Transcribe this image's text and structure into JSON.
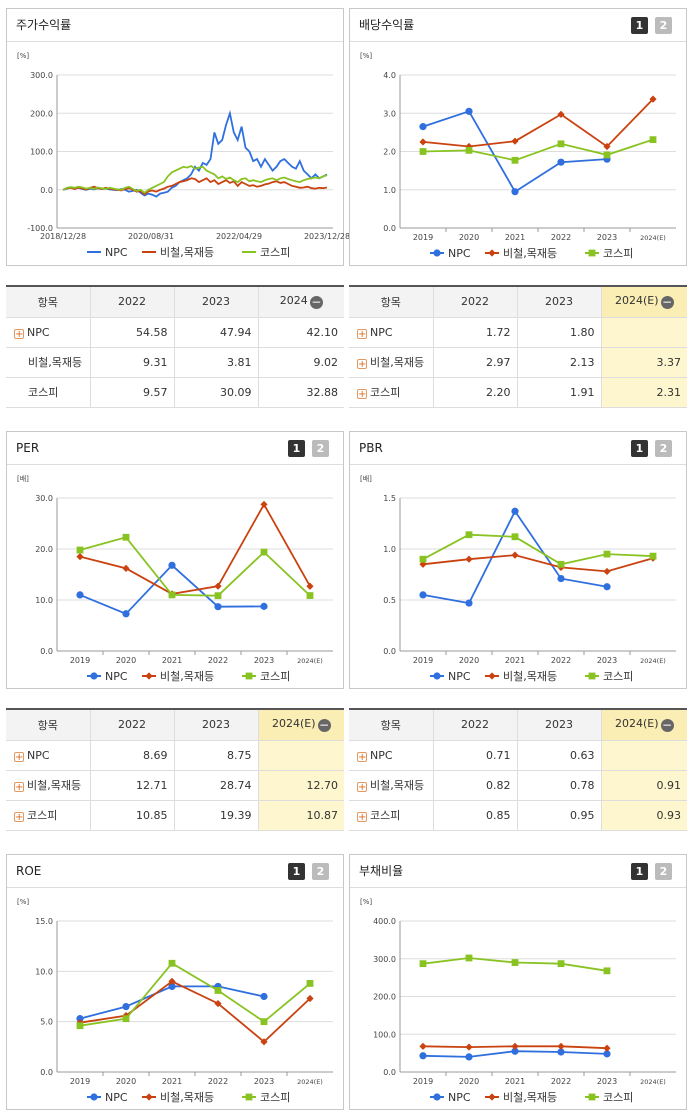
{
  "colors": {
    "npc": "#2f6fde",
    "steel": "#c9420f",
    "kospi": "#88c321",
    "grid": "#dddddd",
    "axis": "#999999"
  },
  "icons": {
    "add": "plus-box-icon",
    "collapse": "minus-circle-icon"
  },
  "legend": {
    "npc": "NPC",
    "steel": "비철,목재등",
    "kospi": "코스피"
  },
  "panels": {
    "stock_return": {
      "title": "주가수익률",
      "unit": "[%]"
    },
    "dividend": {
      "title": "배당수익률",
      "unit": "[%]",
      "btn1": "1",
      "btn2": "2"
    },
    "per": {
      "title": "PER",
      "unit": "[배]",
      "btn1": "1",
      "btn2": "2"
    },
    "pbr": {
      "title": "PBR",
      "unit": "[배]",
      "btn1": "1",
      "btn2": "2"
    },
    "roe": {
      "title": "ROE",
      "unit": "[%]",
      "btn1": "1",
      "btn2": "2"
    },
    "debt": {
      "title": "부채비율",
      "unit": "[%]",
      "btn1": "1",
      "btn2": "2"
    }
  },
  "tables": {
    "stock_return": {
      "header": [
        "항목",
        "2022",
        "2023",
        "2024"
      ],
      "rows": [
        {
          "label": "NPC",
          "plus": true,
          "vals": [
            "54.58",
            "47.94",
            "42.10"
          ]
        },
        {
          "label": "비철,목재등",
          "plus": false,
          "vals": [
            "9.31",
            "3.81",
            "9.02"
          ]
        },
        {
          "label": "코스피",
          "plus": false,
          "vals": [
            "9.57",
            "30.09",
            "32.88"
          ]
        }
      ]
    },
    "dividend": {
      "header": [
        "항목",
        "2022",
        "2023",
        "2024(E)"
      ],
      "rows": [
        {
          "label": "NPC",
          "plus": true,
          "vals": [
            "1.72",
            "1.80",
            ""
          ]
        },
        {
          "label": "비철,목재등",
          "plus": true,
          "vals": [
            "2.97",
            "2.13",
            "3.37"
          ]
        },
        {
          "label": "코스피",
          "plus": true,
          "vals": [
            "2.20",
            "1.91",
            "2.31"
          ]
        }
      ]
    },
    "per": {
      "header": [
        "항목",
        "2022",
        "2023",
        "2024(E)"
      ],
      "rows": [
        {
          "label": "NPC",
          "plus": true,
          "vals": [
            "8.69",
            "8.75",
            ""
          ]
        },
        {
          "label": "비철,목재등",
          "plus": true,
          "vals": [
            "12.71",
            "28.74",
            "12.70"
          ]
        },
        {
          "label": "코스피",
          "plus": true,
          "vals": [
            "10.85",
            "19.39",
            "10.87"
          ]
        }
      ]
    },
    "pbr": {
      "header": [
        "항목",
        "2022",
        "2023",
        "2024(E)"
      ],
      "rows": [
        {
          "label": "NPC",
          "plus": true,
          "vals": [
            "0.71",
            "0.63",
            ""
          ]
        },
        {
          "label": "비철,목재등",
          "plus": true,
          "vals": [
            "0.82",
            "0.78",
            "0.91"
          ]
        },
        {
          "label": "코스피",
          "plus": true,
          "vals": [
            "0.85",
            "0.95",
            "0.93"
          ]
        }
      ]
    }
  },
  "chart_data": [
    {
      "type": "line",
      "key": "stock_return",
      "ylim": [
        -100,
        300
      ],
      "yticks": [
        "300.0",
        "200.0",
        "100.0",
        "0.0",
        "-100.0"
      ],
      "xticks": [
        "2018/12/28",
        "2020/08/31",
        "2022/04/29",
        "2023/12/28"
      ],
      "series": [
        {
          "name": "NPC",
          "values": [
            0,
            3,
            6,
            4,
            5,
            2,
            0,
            3,
            1,
            4,
            2,
            3,
            1,
            0,
            -1,
            2,
            0,
            -5,
            -3,
            0,
            -8,
            -15,
            -10,
            -13,
            -18,
            -10,
            -8,
            -5,
            5,
            10,
            20,
            25,
            30,
            40,
            60,
            50,
            70,
            65,
            80,
            150,
            120,
            130,
            170,
            200,
            150,
            130,
            165,
            110,
            100,
            75,
            80,
            60,
            80,
            65,
            50,
            60,
            75,
            80,
            70,
            60,
            55,
            75,
            50,
            40,
            30,
            40,
            30,
            35,
            40
          ]
        },
        {
          "name": "비철,목재등",
          "values": [
            0,
            4,
            5,
            2,
            6,
            3,
            1,
            5,
            8,
            4,
            2,
            5,
            3,
            1,
            0,
            -2,
            2,
            4,
            0,
            -5,
            -3,
            -12,
            -4,
            -2,
            -5,
            0,
            3,
            8,
            10,
            15,
            20,
            22,
            25,
            30,
            28,
            20,
            25,
            30,
            20,
            25,
            15,
            20,
            25,
            18,
            22,
            10,
            20,
            15,
            10,
            12,
            8,
            10,
            14,
            16,
            20,
            22,
            18,
            20,
            15,
            10,
            8,
            5,
            6,
            8,
            4,
            3,
            5,
            4,
            6
          ]
        },
        {
          "name": "코스피",
          "values": [
            0,
            5,
            7,
            5,
            8,
            6,
            3,
            5,
            2,
            6,
            4,
            2,
            5,
            3,
            1,
            0,
            5,
            8,
            2,
            -3,
            0,
            -8,
            0,
            5,
            10,
            15,
            20,
            35,
            45,
            50,
            55,
            60,
            58,
            62,
            55,
            58,
            60,
            50,
            45,
            40,
            30,
            35,
            28,
            32,
            25,
            20,
            28,
            30,
            22,
            25,
            22,
            20,
            25,
            28,
            30,
            25,
            30,
            32,
            28,
            25,
            22,
            20,
            25,
            28,
            30,
            32,
            30,
            35,
            38
          ]
        }
      ]
    },
    {
      "type": "line",
      "key": "dividend",
      "ylim": [
        0,
        4
      ],
      "yticks": [
        "4.0",
        "3.0",
        "2.0",
        "1.0",
        "0.0"
      ],
      "categories": [
        "2019",
        "2020",
        "2021",
        "2022",
        "2023",
        "2024(E)"
      ],
      "series": [
        {
          "name": "NPC",
          "values": [
            2.65,
            3.05,
            0.95,
            1.72,
            1.8,
            null
          ]
        },
        {
          "name": "비철,목재등",
          "values": [
            2.25,
            2.13,
            2.27,
            2.97,
            2.13,
            3.37
          ]
        },
        {
          "name": "코스피",
          "values": [
            2.0,
            2.03,
            1.77,
            2.2,
            1.91,
            2.31
          ]
        }
      ]
    },
    {
      "type": "line",
      "key": "per",
      "ylim": [
        0,
        30
      ],
      "yticks": [
        "30.0",
        "20.0",
        "10.0",
        "0.0"
      ],
      "categories": [
        "2019",
        "2020",
        "2021",
        "2022",
        "2023",
        "2024(E)"
      ],
      "series": [
        {
          "name": "NPC",
          "values": [
            11.0,
            7.3,
            16.8,
            8.69,
            8.75,
            null
          ]
        },
        {
          "name": "비철,목재등",
          "values": [
            18.5,
            16.2,
            11.2,
            12.71,
            28.74,
            12.7
          ]
        },
        {
          "name": "코스피",
          "values": [
            19.8,
            22.3,
            11.0,
            10.85,
            19.39,
            10.87
          ]
        }
      ]
    },
    {
      "type": "line",
      "key": "pbr",
      "ylim": [
        0,
        1.5
      ],
      "yticks": [
        "1.5",
        "1.0",
        "0.5",
        "0.0"
      ],
      "categories": [
        "2019",
        "2020",
        "2021",
        "2022",
        "2023",
        "2024(E)"
      ],
      "series": [
        {
          "name": "NPC",
          "values": [
            0.55,
            0.47,
            1.37,
            0.71,
            0.63,
            null
          ]
        },
        {
          "name": "비철,목재등",
          "values": [
            0.85,
            0.9,
            0.94,
            0.82,
            0.78,
            0.91
          ]
        },
        {
          "name": "코스피",
          "values": [
            0.9,
            1.14,
            1.12,
            0.85,
            0.95,
            0.93
          ]
        }
      ]
    },
    {
      "type": "line",
      "key": "roe",
      "ylim": [
        0,
        15
      ],
      "yticks": [
        "15.0",
        "10.0",
        "5.0",
        "0.0"
      ],
      "categories": [
        "2019",
        "2020",
        "2021",
        "2022",
        "2023",
        "2024(E)"
      ],
      "series": [
        {
          "name": "NPC",
          "values": [
            5.3,
            6.5,
            8.5,
            8.5,
            7.5,
            null
          ]
        },
        {
          "name": "비철,목재등",
          "values": [
            4.9,
            5.6,
            9.0,
            6.8,
            3.0,
            7.3
          ]
        },
        {
          "name": "코스피",
          "values": [
            4.6,
            5.3,
            10.8,
            8.1,
            5.0,
            8.8
          ]
        }
      ]
    },
    {
      "type": "line",
      "key": "debt",
      "ylim": [
        0,
        400
      ],
      "yticks": [
        "400.0",
        "300.0",
        "200.0",
        "100.0",
        "0.0"
      ],
      "categories": [
        "2019",
        "2020",
        "2021",
        "2022",
        "2023",
        "2024(E)"
      ],
      "series": [
        {
          "name": "NPC",
          "values": [
            43,
            40,
            55,
            53,
            48,
            null
          ]
        },
        {
          "name": "비철,목재등",
          "values": [
            68,
            66,
            68,
            68,
            63,
            null
          ]
        },
        {
          "name": "코스피",
          "values": [
            287,
            302,
            290,
            287,
            268,
            null
          ]
        }
      ]
    }
  ]
}
